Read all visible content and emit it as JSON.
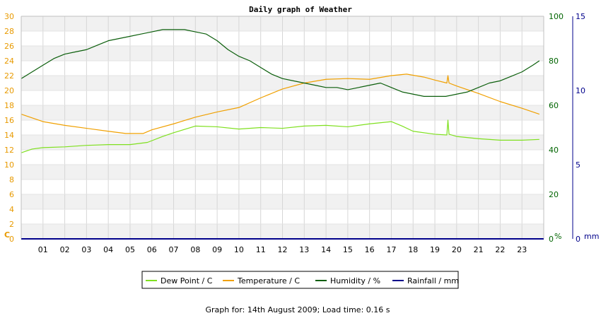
{
  "chart_data": {
    "type": "line",
    "title": "Daily graph of Weather",
    "footer": "Graph for: 14th August 2009; Load time: 0.16 s",
    "x_ticks": [
      "01",
      "02",
      "03",
      "04",
      "05",
      "06",
      "07",
      "08",
      "09",
      "10",
      "11",
      "12",
      "13",
      "14",
      "15",
      "16",
      "17",
      "18",
      "19",
      "20",
      "21",
      "22",
      "23"
    ],
    "xlim": [
      0,
      24
    ],
    "grid": true,
    "legend_position": "bottom",
    "axes": {
      "left": {
        "unit": "C",
        "range": [
          0,
          30
        ],
        "ticks": [
          "0",
          "2",
          "4",
          "6",
          "8",
          "10",
          "12",
          "14",
          "16",
          "18",
          "20",
          "22",
          "24",
          "26",
          "28",
          "30"
        ],
        "color": "#e89a00"
      },
      "right1": {
        "unit": "%",
        "range": [
          0,
          100
        ],
        "ticks": [
          "0",
          "20",
          "40",
          "60",
          "80",
          "100"
        ],
        "color": "#006400"
      },
      "right2": {
        "unit": "mm",
        "range": [
          0,
          15
        ],
        "ticks": [
          "0",
          "5",
          "10",
          "15"
        ],
        "color": "#00008b"
      }
    },
    "series": [
      {
        "name": "Dew Point / C",
        "axis": "left",
        "color": "#7fe01f",
        "x": [
          0,
          0.5,
          1,
          2,
          3,
          4,
          5,
          5.8,
          6.5,
          7,
          8,
          9,
          10,
          11,
          12,
          13,
          14,
          15,
          16,
          17,
          17.5,
          18,
          19,
          19.55,
          19.6,
          19.65,
          20,
          21,
          22,
          23,
          23.8
        ],
        "y": [
          11.6,
          12.1,
          12.3,
          12.4,
          12.6,
          12.7,
          12.7,
          13.0,
          13.8,
          14.3,
          15.2,
          15.1,
          14.8,
          15.0,
          14.9,
          15.2,
          15.3,
          15.1,
          15.5,
          15.8,
          15.2,
          14.5,
          14.1,
          14.0,
          16.0,
          14.1,
          13.8,
          13.5,
          13.3,
          13.3,
          13.4
        ]
      },
      {
        "name": "Temperature / C",
        "axis": "left",
        "color": "#f0a000",
        "x": [
          0,
          0.5,
          1,
          2,
          3,
          4,
          4.8,
          5.6,
          6,
          7,
          8,
          9,
          10,
          11,
          12,
          13,
          14,
          15,
          16,
          17,
          17.7,
          18.5,
          19,
          19.55,
          19.6,
          19.65,
          20,
          21,
          22,
          23,
          23.8
        ],
        "y": [
          16.8,
          16.3,
          15.8,
          15.3,
          14.9,
          14.5,
          14.2,
          14.2,
          14.7,
          15.5,
          16.4,
          17.1,
          17.7,
          19.0,
          20.2,
          21.0,
          21.5,
          21.6,
          21.5,
          22.0,
          22.2,
          21.8,
          21.4,
          21.0,
          22.0,
          21.0,
          20.6,
          19.6,
          18.5,
          17.6,
          16.8
        ]
      },
      {
        "name": "Humidity / %",
        "axis": "right1",
        "color": "#0b5e0b",
        "x": [
          0,
          0.5,
          1,
          1.5,
          2,
          2.5,
          3,
          3.5,
          4,
          4.5,
          5,
          5.5,
          6,
          6.5,
          7,
          7.5,
          8,
          8.5,
          9,
          9.5,
          10,
          10.5,
          11,
          11.5,
          12,
          12.5,
          13,
          13.5,
          14,
          14.5,
          15,
          15.5,
          16,
          16.5,
          17,
          17.5,
          18,
          18.5,
          19,
          19.5,
          20,
          20.5,
          21,
          21.5,
          22,
          22.5,
          23,
          23.5,
          23.8
        ],
        "y": [
          72,
          75,
          78,
          81,
          83,
          84,
          85,
          87,
          89,
          90,
          91,
          92,
          93,
          94,
          94,
          94,
          93,
          92,
          89,
          85,
          82,
          80,
          77,
          74,
          72,
          71,
          70,
          69,
          68,
          68,
          67,
          68,
          69,
          70,
          68,
          66,
          65,
          64,
          64,
          64,
          65,
          66,
          68,
          70,
          71,
          73,
          75,
          78,
          80
        ]
      },
      {
        "name": "Rainfall / mm",
        "axis": "right2",
        "color": "#00008b",
        "x": [
          0,
          24
        ],
        "y": [
          0,
          0
        ]
      }
    ]
  }
}
